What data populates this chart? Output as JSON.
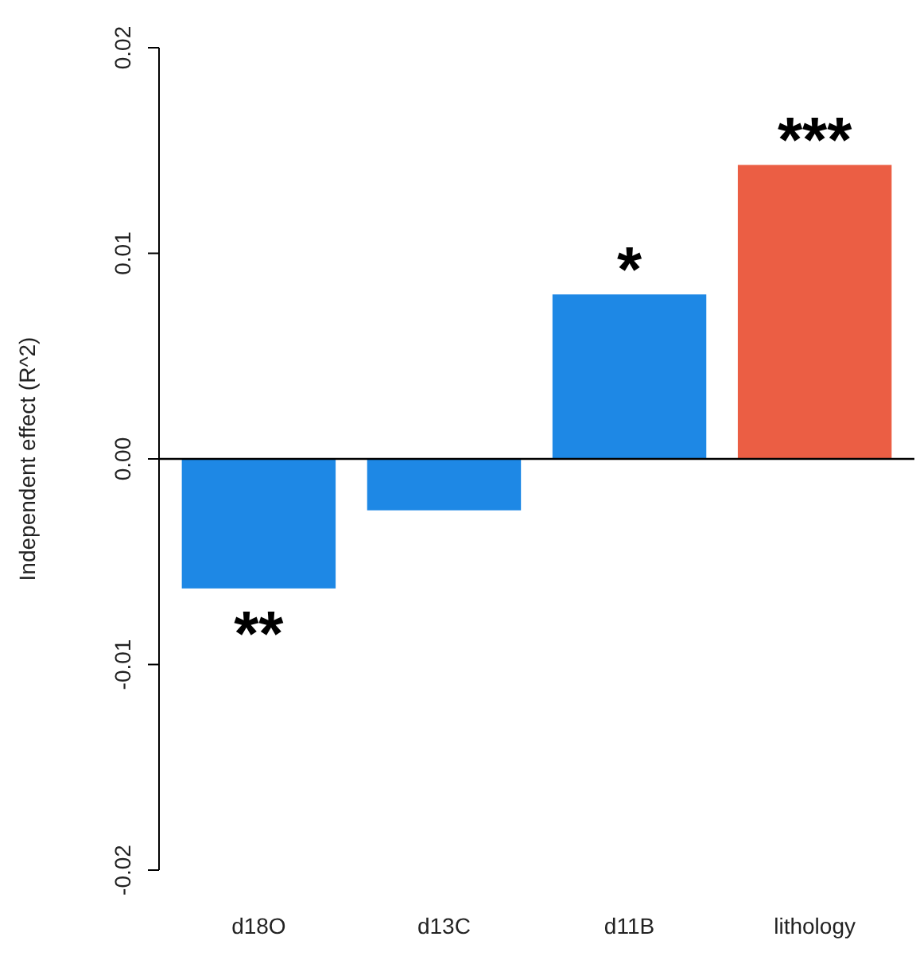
{
  "chart_data": {
    "type": "bar",
    "ylabel": "Independent effect (R^2)",
    "categories": [
      "d18O",
      "d13C",
      "d11B",
      "lithology"
    ],
    "values": [
      -0.0063,
      -0.0025,
      0.008,
      0.0143
    ],
    "colors": [
      "#1e88e5",
      "#1e88e5",
      "#1e88e5",
      "#eb5e44"
    ],
    "ylim": [
      -0.02,
      0.02
    ],
    "yticks": [
      {
        "value": -0.02,
        "label": "-0.02"
      },
      {
        "value": -0.01,
        "label": "-0.01"
      },
      {
        "value": 0,
        "label": "0.00"
      },
      {
        "value": 0.01,
        "label": "0.01"
      },
      {
        "value": 0.02,
        "label": "0.02"
      }
    ],
    "ref_lines": [
      {
        "axis": "y",
        "value": 0
      }
    ],
    "annotations": [
      {
        "text": "**",
        "x": "d18O",
        "y": -0.0063
      },
      {
        "text": "*",
        "x": "d11B",
        "y": 0.008
      },
      {
        "text": "***",
        "x": "lithology",
        "y": 0.0143
      }
    ],
    "grid": false
  }
}
